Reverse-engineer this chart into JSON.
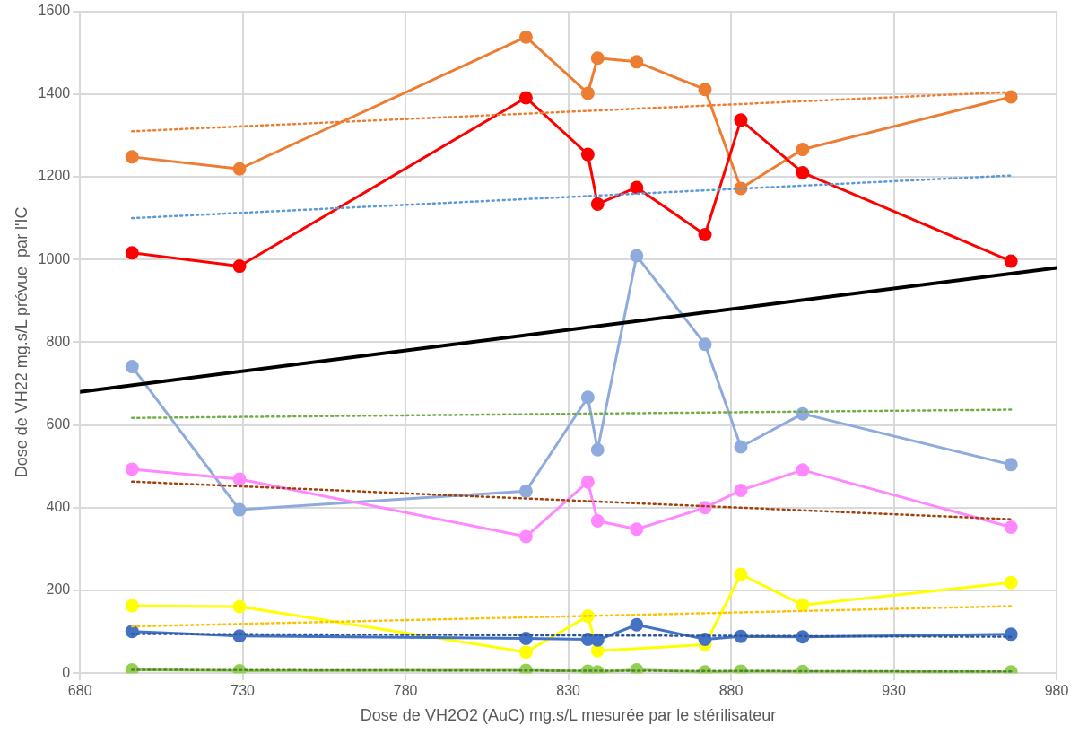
{
  "chart_data": {
    "type": "line",
    "xlabel": "Dose de VH2O2 (AuC) mg.s/L mesurée par le stérilisateur",
    "ylabel": "Dose de VH22 mg.s/L prévue  par l'IC",
    "x": [
      696,
      729,
      817,
      836,
      839,
      851,
      872,
      883,
      902,
      966
    ],
    "xlim": [
      680,
      980
    ],
    "xticks": [
      680,
      730,
      780,
      830,
      880,
      930,
      980
    ],
    "ylim": [
      0,
      1600
    ],
    "yticks": [
      0,
      200,
      400,
      600,
      800,
      1000,
      1200,
      1400,
      1600
    ],
    "grid": true,
    "legend": false,
    "marker": "circle",
    "line_style": "solid",
    "series": [
      {
        "color": "#ed7d31",
        "values": [
          1248,
          1219,
          1538,
          1402,
          1487,
          1478,
          1411,
          1172,
          1266,
          1393
        ]
      },
      {
        "color": "#ff0000",
        "values": [
          1016,
          984,
          1391,
          1254,
          1134,
          1174,
          1060,
          1337,
          1210,
          996
        ]
      },
      {
        "color": "#8faadc",
        "values": [
          741,
          395,
          440,
          667,
          540,
          1009,
          795,
          547,
          627,
          504
        ]
      },
      {
        "color": "#ff88ff",
        "values": [
          493,
          469,
          330,
          462,
          368,
          348,
          400,
          442,
          491,
          353
        ]
      },
      {
        "color": "#ffff00",
        "values": [
          163,
          161,
          51,
          138,
          54,
          null,
          69,
          239,
          165,
          219
        ]
      },
      {
        "color": "#4472c4",
        "values": [
          101,
          90,
          84,
          82,
          80,
          117,
          82,
          89,
          88,
          94
        ]
      },
      {
        "color": "#92d050",
        "values": [
          8,
          6,
          7,
          5,
          3,
          8,
          3,
          5,
          4,
          3
        ]
      },
      {
        "type": "line",
        "color": "#ed7d31",
        "x": [
          696,
          966
        ],
        "values": [
          1310,
          1405
        ],
        "marker": "none",
        "line_style": "dotted"
      },
      {
        "type": "line",
        "color": "#5b9bd5",
        "x": [
          696,
          966
        ],
        "values": [
          1100,
          1203
        ],
        "marker": "none",
        "line_style": "dotted"
      },
      {
        "type": "line",
        "color": "#70ad47",
        "x": [
          696,
          966
        ],
        "values": [
          617,
          637
        ],
        "marker": "none",
        "line_style": "dotted"
      },
      {
        "type": "line",
        "color": "#a0410d",
        "x": [
          696,
          966
        ],
        "values": [
          463,
          372
        ],
        "marker": "none",
        "line_style": "dotted"
      },
      {
        "type": "line",
        "color": "#ffc000",
        "x": [
          696,
          966
        ],
        "values": [
          113,
          162
        ],
        "marker": "none",
        "line_style": "dotted"
      },
      {
        "type": "line",
        "color": "#2f5597",
        "x": [
          696,
          966
        ],
        "values": [
          95,
          88
        ],
        "marker": "none",
        "line_style": "dotted"
      },
      {
        "type": "line",
        "color": "#548235",
        "x": [
          696,
          966
        ],
        "values": [
          8,
          4
        ],
        "marker": "none",
        "line_style": "dotted"
      },
      {
        "type": "line",
        "color": "#000000",
        "x": [
          680,
          980
        ],
        "values": [
          680,
          980
        ],
        "marker": "none",
        "line_style": "solid"
      }
    ]
  }
}
